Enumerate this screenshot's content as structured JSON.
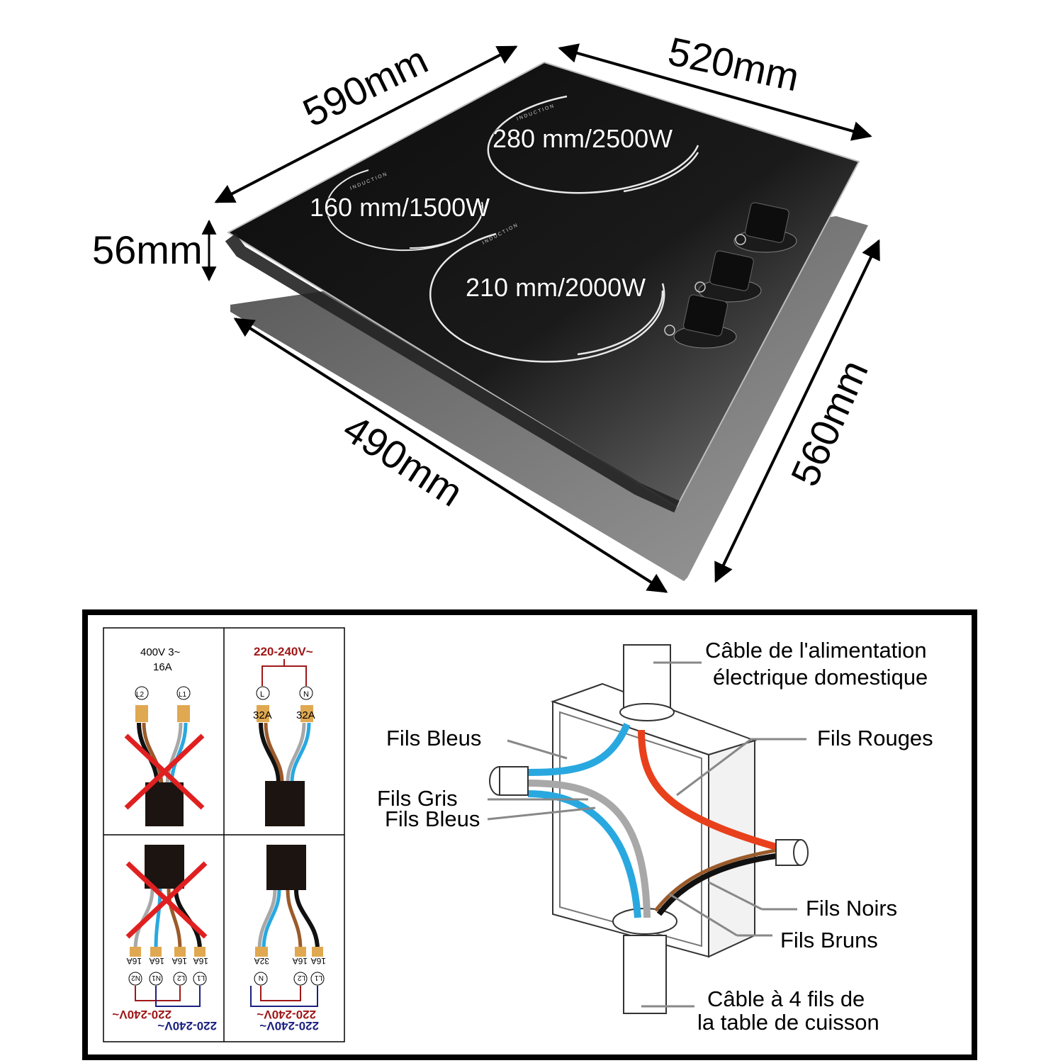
{
  "dimensions": {
    "width_top_left": "590mm",
    "width_top_right": "520mm",
    "height": "56mm",
    "cutout_front": "490mm",
    "cutout_side": "560mm"
  },
  "zones": [
    {
      "label": "280 mm/2500W",
      "tag": "INDUCTION"
    },
    {
      "label": "160 mm/1500W",
      "tag": "INDUCTION"
    },
    {
      "label": "210 mm/2000W",
      "tag": "INDUCTION"
    }
  ],
  "wiring": {
    "panel_tl": {
      "line1": "400V 3~",
      "line2": "16A",
      "terminals": [
        "L2",
        "L1"
      ]
    },
    "panel_tr": {
      "voltage": "220-240V~",
      "terminals": [
        "L",
        "N"
      ],
      "fuses": [
        "32A",
        "32A"
      ]
    },
    "panel_bl": {
      "fuses": [
        "16A",
        "16A",
        "16A",
        "16A"
      ],
      "terminals": [
        "N2",
        "N1",
        "L2",
        "L1"
      ],
      "voltage_red": "220-240V~",
      "voltage_blue": "220-240V~"
    },
    "panel_br": {
      "fuses": [
        "32A",
        "16A",
        "16A"
      ],
      "terminals": [
        "N",
        "L2",
        "L1"
      ],
      "voltage_red": "220-240V~",
      "voltage_blue": "220-240V~"
    }
  },
  "junction_labels": {
    "supply_cable_1": "Câble de l'alimentation",
    "supply_cable_2": "électrique domestique",
    "blue_wires_top": "Fils Bleus",
    "grey_wires": "Fils Gris",
    "blue_wires_bottom": "Fils Bleus",
    "red_wires": "Fils Rouges",
    "black_wires": "Fils Noirs",
    "brown_wires": "Fils Bruns",
    "hob_cable_1": "Câble à 4 fils de",
    "hob_cable_2": "la table de cuisson"
  },
  "colors": {
    "blue_wire": "#29a8e0",
    "grey_wire": "#a8a8a8",
    "red_wire": "#e8401c",
    "brown_wire": "#9b5a2a",
    "black_wire": "#111111",
    "terminal": "#e0a850",
    "cross": "#e02020"
  }
}
